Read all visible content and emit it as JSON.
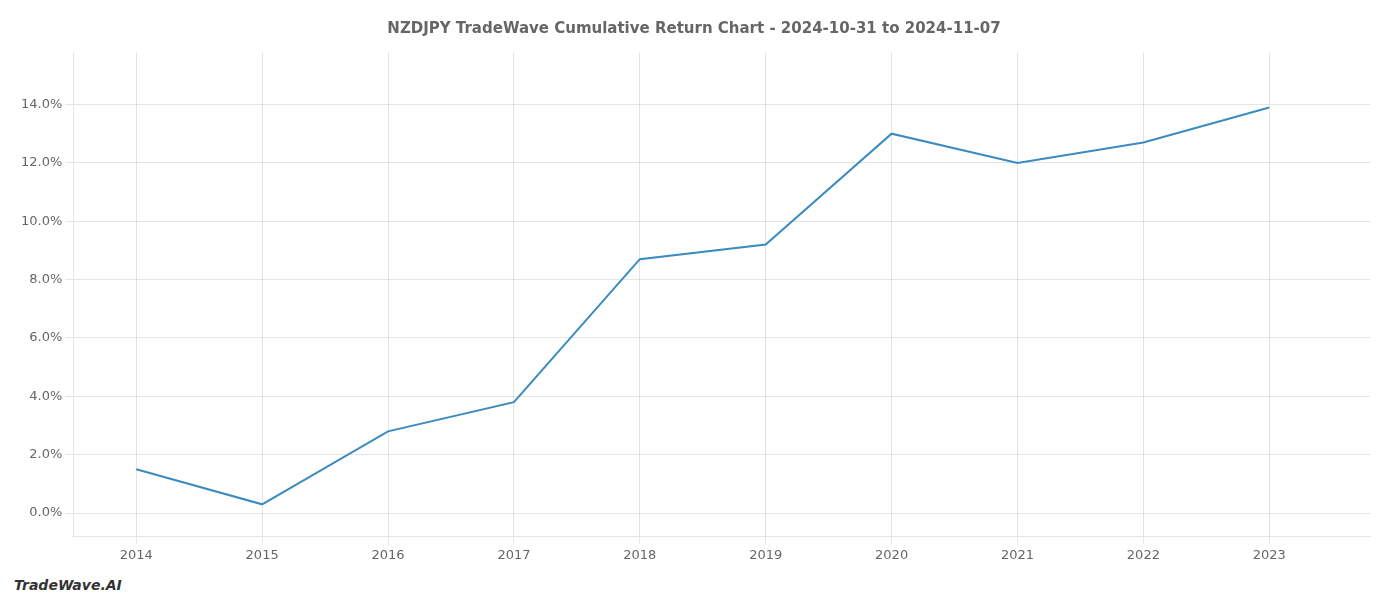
{
  "chart_data": {
    "type": "line",
    "title": "NZDJPY TradeWave Cumulative Return Chart - 2024-10-31 to 2024-11-07",
    "annotations": [
      "TradeWave.AI"
    ],
    "x": [
      2014,
      2015,
      2016,
      2017,
      2018,
      2019,
      2020,
      2021,
      2022,
      2023
    ],
    "values": [
      0.015,
      0.003,
      0.028,
      0.038,
      0.087,
      0.092,
      0.13,
      0.12,
      0.127,
      0.139
    ],
    "color": "#3a8bbf",
    "xlim": [
      2013.5,
      2023.8
    ],
    "xticks": [
      2014,
      2015,
      2016,
      2017,
      2018,
      2019,
      2020,
      2021,
      2022,
      2023
    ],
    "ylim": [
      -0.008,
      0.158
    ],
    "yticks": [
      {
        "value": 0.0,
        "label": "0.0%"
      },
      {
        "value": 0.02,
        "label": "2.0%"
      },
      {
        "value": 0.04,
        "label": "4.0%"
      },
      {
        "value": 0.06,
        "label": "6.0%"
      },
      {
        "value": 0.08,
        "label": "8.0%"
      },
      {
        "value": 0.1,
        "label": "10.0%"
      },
      {
        "value": 0.12,
        "label": "12.0%"
      },
      {
        "value": 0.14,
        "label": "14.0%"
      }
    ],
    "grid": true
  }
}
